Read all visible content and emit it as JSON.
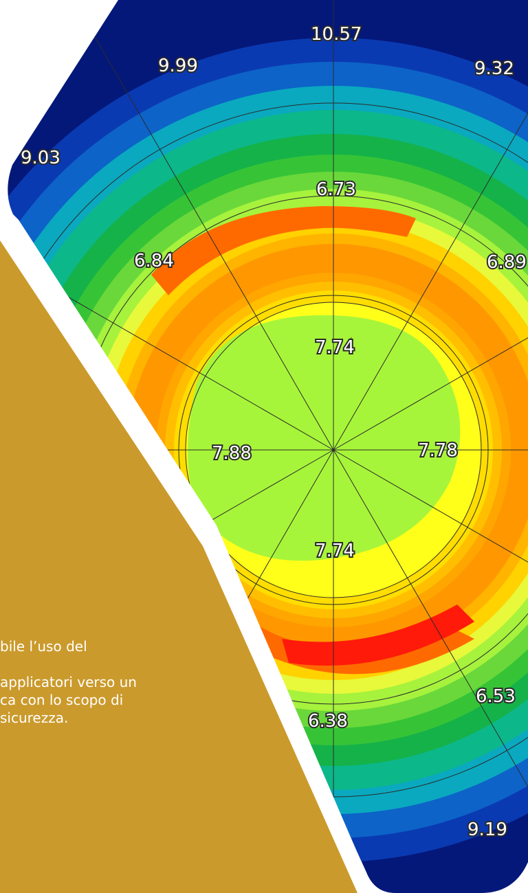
{
  "topography_map": {
    "labels": [
      "10.57",
      "9.99",
      "9.32",
      "9.03",
      "6.73",
      "6.84",
      "6.89",
      "7.74",
      "7.88",
      "7.78",
      "7.74",
      "6.53",
      "6.38",
      "9.19"
    ]
  },
  "info_panel": {
    "lines": [
      "bile l’uso del",
      "",
      "applicatori verso un",
      "ca con lo scopo di",
      "sicurezza."
    ]
  }
}
